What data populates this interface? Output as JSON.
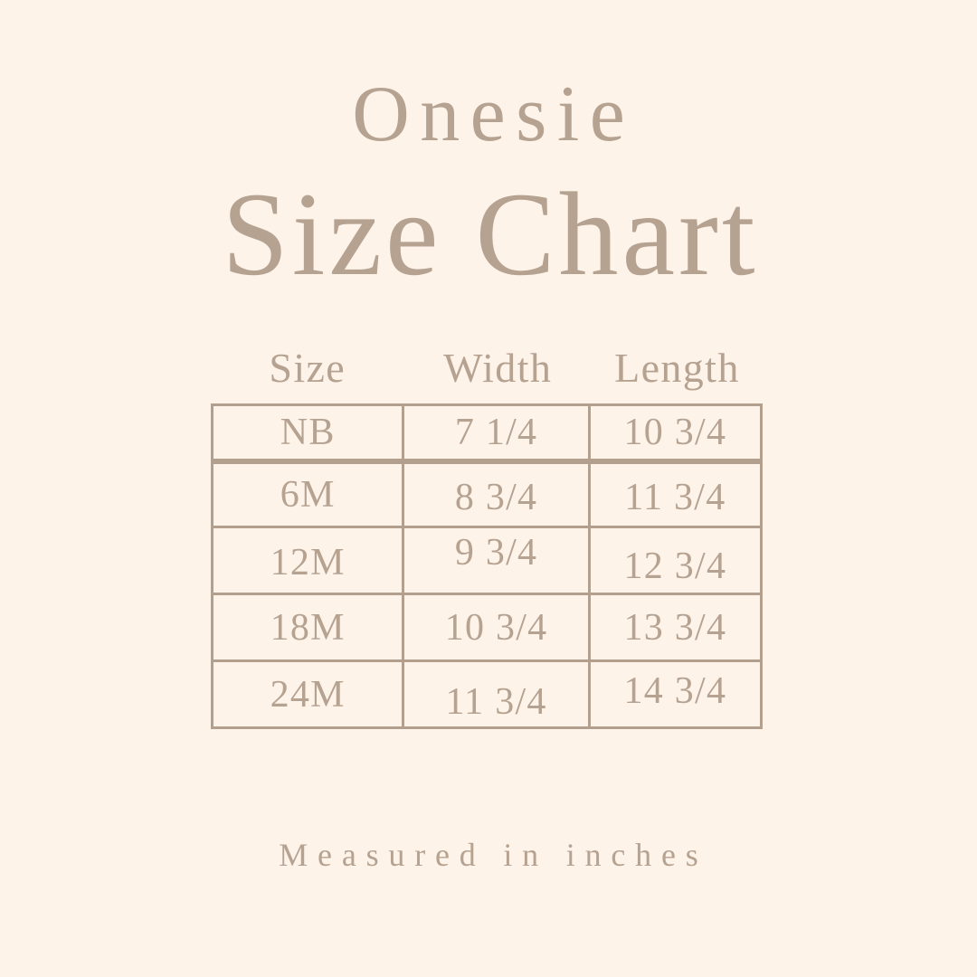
{
  "page": {
    "background_color": "#fdf3e9",
    "accent_color": "#b6a291",
    "border_color": "#b29f8d"
  },
  "header": {
    "subtitle": "Onesie",
    "title": "Size Chart"
  },
  "table": {
    "columns": [
      "Size",
      "Width",
      "Length"
    ],
    "rows": [
      {
        "size": "NB",
        "width": "7 1/4",
        "length": "10 3/4"
      },
      {
        "size": "6M",
        "width": "8 3/4",
        "length": "11 3/4"
      },
      {
        "size": "12M",
        "width": "9 3/4",
        "length": "12 3/4"
      },
      {
        "size": "18M",
        "width": "10 3/4",
        "length": "13 3/4"
      },
      {
        "size": "24M",
        "width": "11 3/4",
        "length": "14 3/4"
      }
    ],
    "unit": "inches"
  },
  "footer": {
    "note": "Measured in inches"
  }
}
